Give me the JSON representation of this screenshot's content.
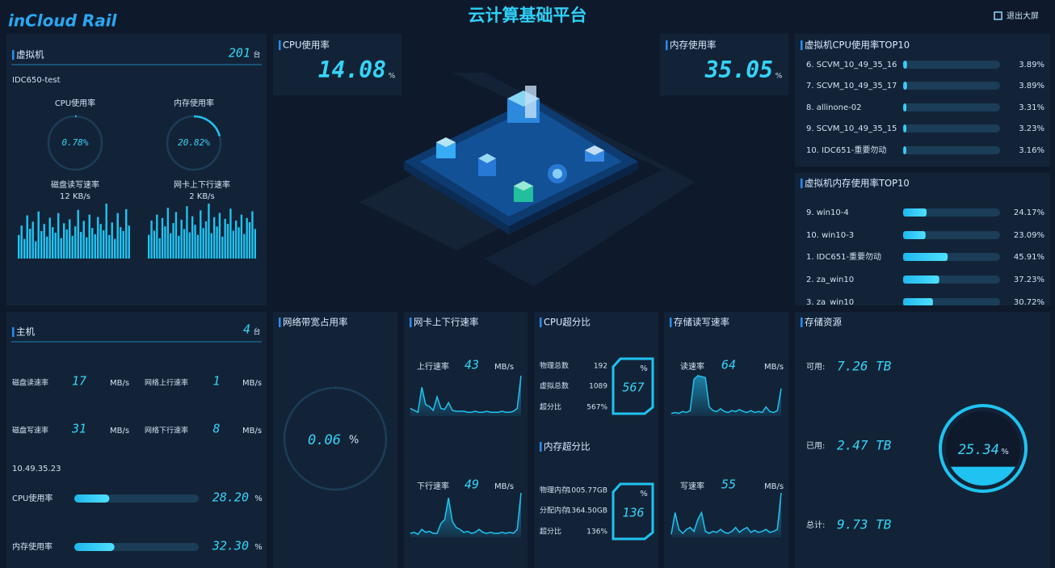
{
  "header": {
    "logo": "inCloud Rail",
    "title": "云计算基础平台",
    "exit": "退出大屏"
  },
  "vm": {
    "title": "虚拟机",
    "count": 201,
    "unit": "台",
    "host": "IDC650-test",
    "cpu": {
      "name": "CPU使用率",
      "value": 0.78,
      "label": "0.78%"
    },
    "mem": {
      "name": "内存使用率",
      "value": 20.82,
      "label": "20.82%"
    },
    "disk": {
      "name": "磁盘读写速率",
      "rate": "12 KB/s",
      "values": [
        30,
        42,
        25,
        55,
        38,
        47,
        22,
        60,
        35,
        44,
        28,
        52,
        40,
        33,
        58,
        26,
        45,
        37,
        50,
        29,
        41,
        62,
        34,
        48,
        27,
        56,
        39,
        31,
        53,
        44,
        36,
        70,
        30,
        46,
        25,
        58,
        40,
        35,
        63,
        42
      ]
    },
    "nic": {
      "name": "网卡上下行速率",
      "rate": "2 KB/s",
      "values": [
        28,
        45,
        33,
        52,
        24,
        48,
        38,
        60,
        30,
        42,
        55,
        27,
        46,
        35,
        62,
        31,
        50,
        40,
        28,
        57,
        36,
        44,
        65,
        30,
        49,
        38,
        54,
        26,
        47,
        41,
        59,
        33,
        45,
        37,
        52,
        29,
        48,
        43,
        56,
        35
      ]
    }
  },
  "cpu_usage": {
    "title": "CPU使用率",
    "value": 14.08,
    "unit": "%"
  },
  "mem_usage": {
    "title": "内存使用率",
    "value": 35.05,
    "unit": "%"
  },
  "vm_cpu_top10": {
    "title": "虚拟机CPU使用率TOP10",
    "rows": [
      {
        "name": "6. SCVM_10_49_35_16",
        "value": 3.89,
        "label": "3.89%"
      },
      {
        "name": "7. SCVM_10_49_35_17",
        "value": 3.89,
        "label": "3.89%"
      },
      {
        "name": "8. allinone-02",
        "value": 3.31,
        "label": "3.31%"
      },
      {
        "name": "9. SCVM_10_49_35_15",
        "value": 3.23,
        "label": "3.23%"
      },
      {
        "name": "10. IDC651-重要勿动",
        "value": 3.16,
        "label": "3.16%"
      }
    ]
  },
  "vm_mem_top10": {
    "title": "虚拟机内存使用率TOP10",
    "rows": [
      {
        "name": "9. win10-4",
        "value": 24.17,
        "label": "24.17%"
      },
      {
        "name": "10. win10-3",
        "value": 23.09,
        "label": "23.09%"
      },
      {
        "name": "1. IDC651-重要勿动",
        "value": 45.91,
        "label": "45.91%"
      },
      {
        "name": "2. za_win10",
        "value": 37.23,
        "label": "37.23%"
      },
      {
        "name": "3. za_win10",
        "value": 30.72,
        "label": "30.72%"
      }
    ]
  },
  "host": {
    "title": "主机",
    "count": 4,
    "unit": "台",
    "stats": [
      {
        "name": "磁盘读速率",
        "value": 17,
        "unit": "MB/s"
      },
      {
        "name": "网络上行速率",
        "value": 1,
        "unit": "MB/s"
      },
      {
        "name": "磁盘写速率",
        "value": 31,
        "unit": "MB/s"
      },
      {
        "name": "网络下行速率",
        "value": 8,
        "unit": "MB/s"
      }
    ],
    "ip": "10.49.35.23",
    "bars": [
      {
        "name": "CPU使用率",
        "value": 28.2,
        "label": "28.20",
        "unit": "%"
      },
      {
        "name": "内存使用率",
        "value": 32.3,
        "label": "32.30",
        "unit": "%"
      }
    ]
  },
  "bandwidth": {
    "title": "网络带宽占用率",
    "value": 0.06,
    "unit": "%"
  },
  "nic_rate": {
    "title": "网卡上下行速率",
    "series": [
      {
        "name": "上行速率",
        "value": 43,
        "unit": "MB/s",
        "values": [
          8,
          6,
          4,
          30,
          12,
          10,
          6,
          20,
          8,
          7,
          14,
          6,
          5,
          5,
          5,
          4,
          4,
          5,
          4,
          4,
          5,
          4,
          4,
          4,
          5,
          4,
          4,
          5,
          8,
          42
        ]
      },
      {
        "name": "下行速率",
        "value": 49,
        "unit": "MB/s",
        "values": [
          4,
          5,
          3,
          8,
          5,
          6,
          4,
          4,
          14,
          18,
          40,
          16,
          10,
          8,
          5,
          6,
          4,
          5,
          8,
          5,
          4,
          5,
          4,
          4,
          5,
          4,
          5,
          4,
          8,
          45
        ]
      }
    ]
  },
  "cpu_overcommit": {
    "title": "CPU超分比",
    "rows": [
      {
        "name": "物理总数",
        "value": 192
      },
      {
        "name": "虚拟总数",
        "value": 1089
      },
      {
        "name": "超分比",
        "value": "567%"
      }
    ],
    "badge": {
      "unit": "%",
      "value": 567
    }
  },
  "mem_overcommit": {
    "title": "内存超分比",
    "rows": [
      {
        "name": "物理内存",
        "value": "1005.77GB"
      },
      {
        "name": "分配内存",
        "value": "1364.50GB"
      },
      {
        "name": "超分比",
        "value": "136%"
      }
    ],
    "badge": {
      "unit": "%",
      "value": 136
    }
  },
  "storage_rate": {
    "title": "存储读写速率",
    "series": [
      {
        "name": "读速率",
        "value": 64,
        "unit": "MB/s",
        "values": [
          3,
          4,
          3,
          5,
          4,
          6,
          40,
          44,
          43,
          42,
          10,
          6,
          5,
          8,
          5,
          4,
          6,
          5,
          7,
          5,
          4,
          6,
          4,
          5,
          4,
          10,
          5,
          4,
          6,
          30
        ]
      },
      {
        "name": "写速率",
        "value": 55,
        "unit": "MB/s",
        "values": [
          3,
          25,
          8,
          4,
          8,
          10,
          6,
          18,
          25,
          6,
          4,
          6,
          5,
          8,
          5,
          4,
          6,
          10,
          5,
          8,
          10,
          5,
          7,
          5,
          6,
          8,
          5,
          6,
          8,
          45
        ]
      }
    ]
  },
  "storage": {
    "title": "存储资源",
    "rows": [
      {
        "name": "可用:",
        "value": "7.26 TB"
      },
      {
        "name": "已用:",
        "value": "2.47 TB"
      },
      {
        "name": "总计:",
        "value": "9.73 TB"
      }
    ],
    "usage": {
      "value": 25.34,
      "label": "25.34",
      "unit": "%"
    }
  }
}
